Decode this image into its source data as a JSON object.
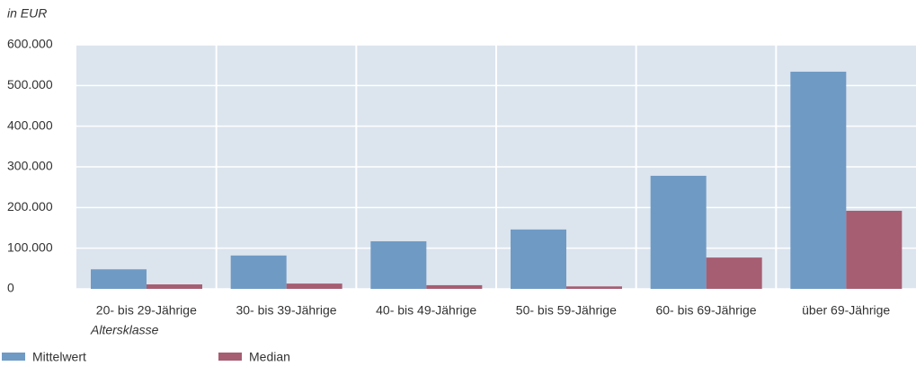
{
  "chart_data": {
    "type": "bar",
    "y_axis_title": "in EUR",
    "x_axis_title": "Altersklasse",
    "categories": [
      "20- bis 29-Jährige",
      "30- bis 39-Jährige",
      "40- bis 49-Jährige",
      "50- bis 59-Jährige",
      "60- bis 69-Jährige",
      "über 69-Jährige"
    ],
    "series": [
      {
        "name": "Mittelwert",
        "color": "#6f9ac4",
        "values": [
          48000,
          82000,
          117000,
          146000,
          278000,
          534000
        ]
      },
      {
        "name": "Median",
        "color": "#a65e72",
        "values": [
          11000,
          13000,
          9000,
          6000,
          77000,
          192000
        ]
      }
    ],
    "ylim": [
      0,
      600000
    ],
    "yticks": [
      {
        "value": 0,
        "label": "0"
      },
      {
        "value": 100000,
        "label": "100.000"
      },
      {
        "value": 200000,
        "label": "200.000"
      },
      {
        "value": 300000,
        "label": "300.000"
      },
      {
        "value": 400000,
        "label": "400.000"
      },
      {
        "value": 500000,
        "label": "500.000"
      },
      {
        "value": 600000,
        "label": "600.000"
      }
    ],
    "grid": true
  }
}
